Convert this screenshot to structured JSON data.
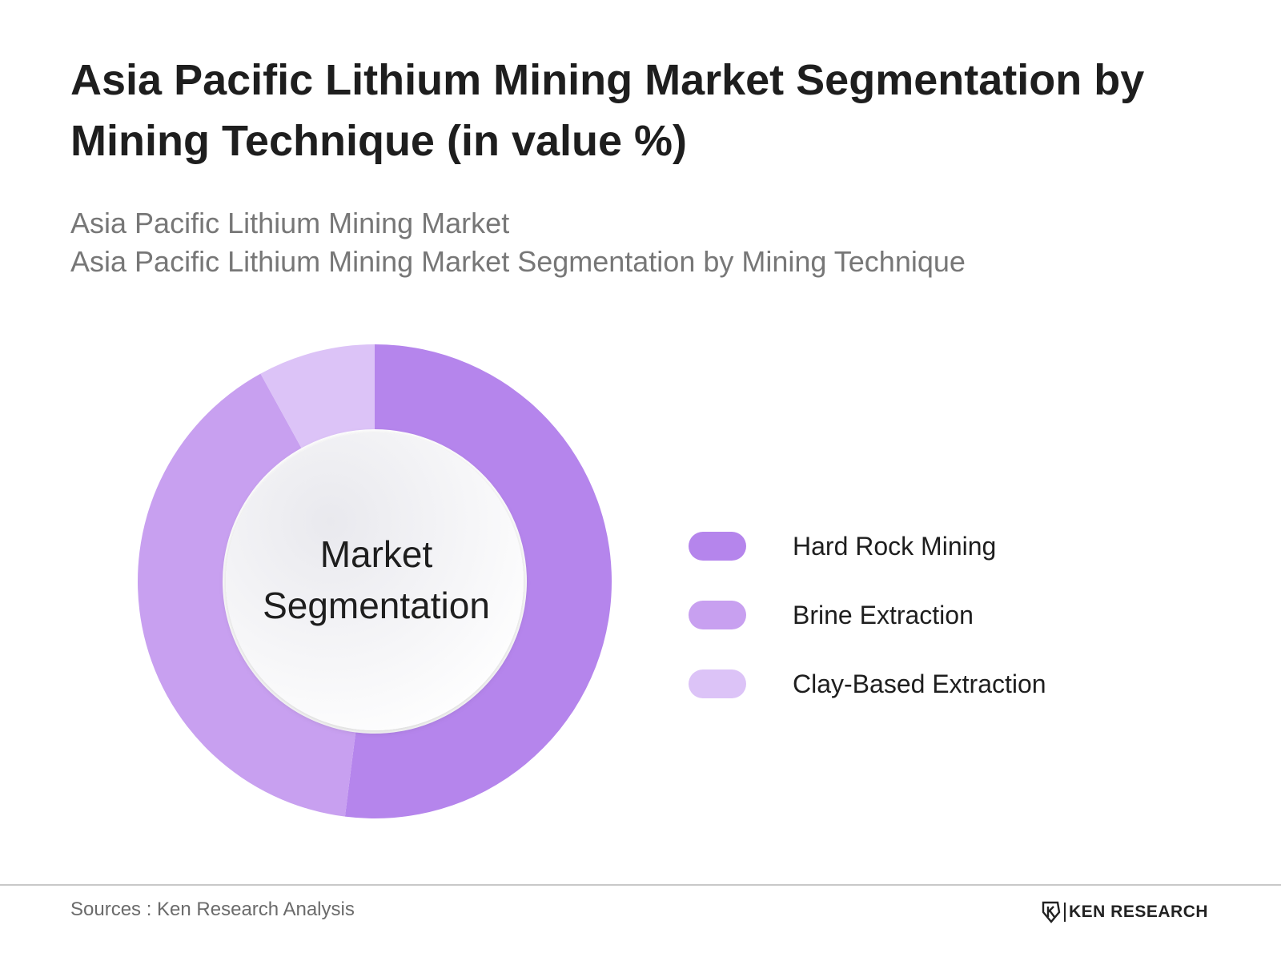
{
  "title": "Asia Pacific Lithium Mining Market Segmentation by Mining Technique (in value %)",
  "subtitle_line1": "Asia Pacific Lithium Mining Market",
  "subtitle_line2": "Asia Pacific Lithium Mining Market Segmentation by Mining Technique",
  "center_label_line1": "Market",
  "center_label_line2": "Segmentation",
  "chart_data": {
    "type": "pie",
    "variant": "donut",
    "categories": [
      "Hard Rock Mining",
      "Brine Extraction",
      "Clay-Based Extraction"
    ],
    "values": [
      52,
      40,
      8
    ],
    "unit": "%",
    "colors": [
      "#b585ec",
      "#c8a0f0",
      "#dcc3f7"
    ],
    "legend_position": "right"
  },
  "footer": {
    "source": "Sources : Ken Research Analysis",
    "logo_text": "KEN RESEARCH",
    "logo_icon": "ken-research-logo-icon"
  }
}
